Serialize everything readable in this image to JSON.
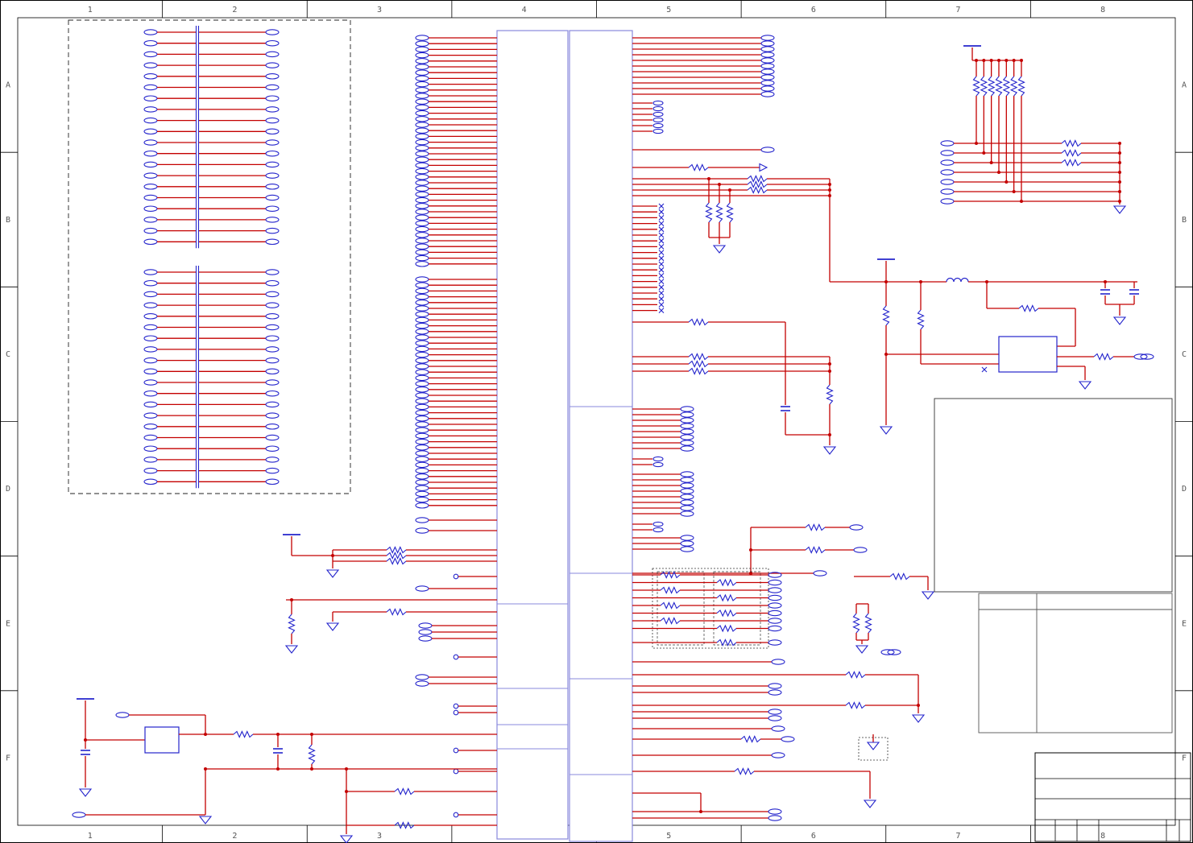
{
  "sheet": {
    "grid_columns": [
      "1",
      "2",
      "3",
      "4",
      "5",
      "6",
      "7",
      "8"
    ],
    "grid_rows": [
      "A",
      "B",
      "C",
      "D",
      "E",
      "F"
    ],
    "colors": {
      "wire": "#c40000",
      "symbol": "#2424cc",
      "ic_outline": "#8888dd",
      "border": "#000000",
      "label": "#555555",
      "background": "#ffffff"
    },
    "title_block": {
      "visible_text": []
    },
    "components": {
      "connector_blocks": 2,
      "connector_rows_per_block": 20,
      "ic_count": 2,
      "ic_left_pin_rows_per_group": 40,
      "ic_right_top_pin_rows": 11,
      "no_connect_stub_count": 19,
      "pullup_resistor_count": 7,
      "termination_resistor_rows": 8
    }
  }
}
